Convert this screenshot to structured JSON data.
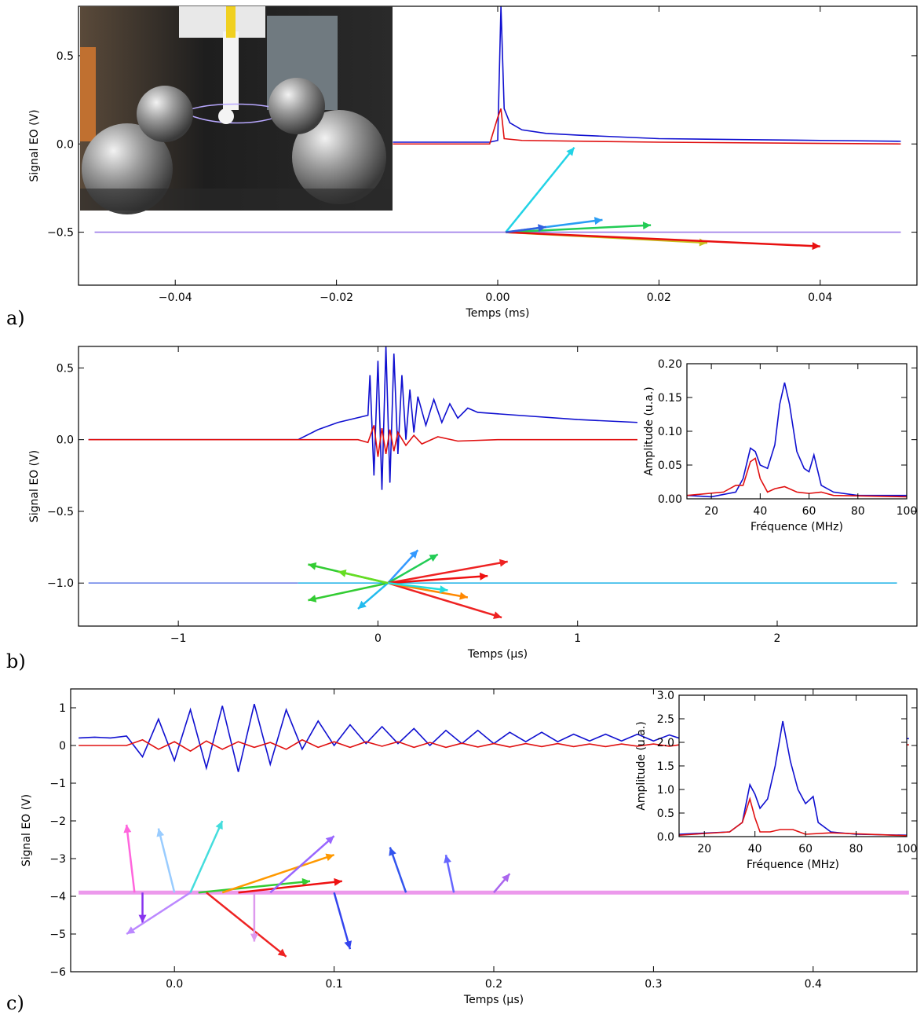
{
  "chart_data": [
    {
      "type": "line",
      "label": "a)",
      "xlabel": "Temps (ms)",
      "ylabel": "Signal EO (V)",
      "xlim": [
        -0.052,
        0.052
      ],
      "ylim": [
        -0.8,
        0.78
      ],
      "xticks": [
        {
          "value": -0.04,
          "label": "−0.04"
        },
        {
          "value": -0.02,
          "label": "−0.02"
        },
        {
          "value": 0,
          "label": "0.00"
        },
        0.02,
        0.04
      ],
      "yticks": [
        {
          "value": -0.5,
          "label": "−0.5"
        },
        {
          "value": 0,
          "label": "0.0"
        },
        0.5
      ],
      "series": [
        {
          "color": "#9b7be8",
          "x": [
            -0.05,
            0.05
          ],
          "values": [
            -0.5,
            -0.5
          ]
        },
        {
          "color": "#1010d0",
          "x": [
            -0.013,
            -0.001,
            0,
            0.0004,
            0.0008,
            0.0015,
            0.003,
            0.006,
            0.01,
            0.02,
            0.03,
            0.04,
            0.05
          ],
          "values": [
            0.01,
            0.01,
            0.02,
            0.78,
            0.2,
            0.12,
            0.08,
            0.06,
            0.05,
            0.03,
            0.025,
            0.02,
            0.015
          ]
        },
        {
          "color": "#e01010",
          "x": [
            -0.013,
            -0.001,
            0,
            0.0004,
            0.0008,
            0.003,
            0.02,
            0.05
          ],
          "values": [
            0,
            0,
            0.15,
            0.2,
            0.03,
            0.02,
            0.01,
            0
          ]
        }
      ],
      "arrows": [
        {
          "color": "#22d3e6",
          "x": [
            0.001,
            0.0095
          ],
          "y": [
            -0.5,
            -0.02
          ]
        },
        {
          "color": "#2a9df4",
          "x": [
            0.001,
            0.013
          ],
          "y": [
            -0.5,
            -0.43
          ]
        },
        {
          "color": "#22cc55",
          "x": [
            0.001,
            0.019
          ],
          "y": [
            -0.5,
            -0.46
          ]
        },
        {
          "color": "#c8c020",
          "x": [
            0.001,
            0.026
          ],
          "y": [
            -0.5,
            -0.56
          ]
        },
        {
          "color": "#e81010",
          "x": [
            0.001,
            0.04
          ],
          "y": [
            -0.5,
            -0.58
          ]
        },
        {
          "color": "#3060e0",
          "x": [
            0.001,
            0.006
          ],
          "y": [
            -0.5,
            -0.47
          ]
        }
      ]
    },
    {
      "type": "line",
      "label": "b)",
      "xlabel": "Temps (µs)",
      "ylabel": "Signal EO (V)",
      "xlim": [
        -1.5,
        2.7
      ],
      "ylim": [
        -1.3,
        0.65
      ],
      "xticks": [
        {
          "value": -1,
          "label": "−1"
        },
        0,
        1,
        2
      ],
      "yticks": [
        {
          "value": -1,
          "label": "−1.0"
        },
        {
          "value": -0.5,
          "label": "−0.5"
        },
        {
          "value": 0,
          "label": "0.0"
        },
        0.5
      ],
      "series": [
        {
          "color": "#6c84e8",
          "x": [
            -1.45,
            -0.4
          ],
          "values": [
            -1,
            -1
          ]
        },
        {
          "color": "#29b6e8",
          "x": [
            -0.4,
            2.6
          ],
          "values": [
            -1,
            -1
          ]
        },
        {
          "color": "#1010d0",
          "x": [
            -1.45,
            -0.4,
            -0.3,
            -0.2,
            -0.05,
            -0.04,
            -0.02,
            0,
            0.02,
            0.04,
            0.06,
            0.08,
            0.1,
            0.12,
            0.14,
            0.16,
            0.18,
            0.2,
            0.24,
            0.28,
            0.32,
            0.36,
            0.4,
            0.45,
            0.5,
            0.7,
            1.0,
            1.3
          ],
          "values": [
            0,
            0,
            0.07,
            0.12,
            0.17,
            0.45,
            -0.25,
            0.55,
            -0.35,
            0.65,
            -0.3,
            0.6,
            -0.1,
            0.45,
            0,
            0.35,
            0.05,
            0.3,
            0.1,
            0.28,
            0.12,
            0.25,
            0.15,
            0.22,
            0.19,
            0.17,
            0.14,
            0.12
          ]
        },
        {
          "color": "#e01010",
          "x": [
            -1.45,
            -0.1,
            -0.05,
            -0.02,
            0,
            0.02,
            0.04,
            0.06,
            0.08,
            0.1,
            0.14,
            0.18,
            0.22,
            0.3,
            0.4,
            0.6,
            1.0,
            1.3
          ],
          "values": [
            0,
            0,
            -0.02,
            0.1,
            -0.12,
            0.08,
            -0.1,
            0.07,
            -0.08,
            0.05,
            -0.04,
            0.03,
            -0.03,
            0.02,
            -0.01,
            0,
            0,
            0
          ]
        }
      ],
      "arrows": [
        {
          "color": "#33cc33",
          "x": [
            0.05,
            -0.35
          ],
          "y": [
            -1,
            -0.87
          ]
        },
        {
          "color": "#33cc33",
          "x": [
            0.05,
            -0.35
          ],
          "y": [
            -1,
            -1.12
          ]
        },
        {
          "color": "#3399ff",
          "x": [
            0.05,
            0.2
          ],
          "y": [
            -1,
            -0.77
          ]
        },
        {
          "color": "#22cc55",
          "x": [
            0.05,
            0.3
          ],
          "y": [
            -1,
            -0.8
          ]
        },
        {
          "color": "#ee2222",
          "x": [
            0.05,
            0.65
          ],
          "y": [
            -1,
            -0.85
          ]
        },
        {
          "color": "#ee2222",
          "x": [
            0.05,
            0.62
          ],
          "y": [
            -1,
            -1.24
          ]
        },
        {
          "color": "#ff8800",
          "x": [
            0.05,
            0.45
          ],
          "y": [
            -1,
            -1.1
          ]
        },
        {
          "color": "#22bbee",
          "x": [
            0.05,
            -0.1
          ],
          "y": [
            -1,
            -1.18
          ]
        },
        {
          "color": "#ee1111",
          "x": [
            0.05,
            0.55
          ],
          "y": [
            -1,
            -0.95
          ]
        },
        {
          "color": "#22dddd",
          "x": [
            0.05,
            0.35
          ],
          "y": [
            -1,
            -1.05
          ]
        },
        {
          "color": "#66dd22",
          "x": [
            0.05,
            -0.2
          ],
          "y": [
            -1,
            -0.92
          ]
        }
      ]
    },
    {
      "type": "line",
      "xlabel": "Fréquence (MHz)",
      "ylabel": "Amplitude (u.a.)",
      "xlim": [
        10,
        100
      ],
      "ylim": [
        0,
        0.2
      ],
      "xticks": [
        20,
        40,
        60,
        80,
        100
      ],
      "yticks": [
        {
          "value": 0,
          "label": "0.00"
        },
        0.05,
        {
          "value": 0.1,
          "label": "0.10"
        },
        0.15,
        {
          "value": 0.2,
          "label": "0.20"
        }
      ],
      "series": [
        {
          "color": "#1010d0",
          "x": [
            10,
            20,
            30,
            33,
            36,
            38,
            40,
            43,
            46,
            48,
            50,
            52,
            55,
            58,
            60,
            62,
            63,
            65,
            70,
            80,
            90,
            100
          ],
          "values": [
            0.005,
            0.003,
            0.01,
            0.03,
            0.075,
            0.07,
            0.05,
            0.045,
            0.08,
            0.14,
            0.172,
            0.14,
            0.07,
            0.045,
            0.04,
            0.065,
            0.05,
            0.02,
            0.01,
            0.005,
            0.005,
            0.005
          ]
        },
        {
          "color": "#e01010",
          "x": [
            10,
            25,
            30,
            33,
            36,
            38,
            40,
            43,
            46,
            50,
            55,
            60,
            65,
            70,
            100
          ],
          "values": [
            0.005,
            0.01,
            0.02,
            0.02,
            0.055,
            0.06,
            0.03,
            0.01,
            0.015,
            0.018,
            0.01,
            0.008,
            0.01,
            0.005,
            0.003
          ]
        }
      ]
    },
    {
      "type": "line",
      "label": "c)",
      "xlabel": "Temps (µs)",
      "ylabel": "Signal EO (V)",
      "xlim": [
        -0.065,
        0.465
      ],
      "ylim": [
        -6,
        1.5
      ],
      "xticks": [
        {
          "value": 0,
          "label": "0.0"
        },
        0.1,
        0.2,
        0.3,
        0.4
      ],
      "yticks": [
        {
          "value": -6,
          "label": "−6"
        },
        {
          "value": -5,
          "label": "−5"
        },
        {
          "value": -4,
          "label": "−4"
        },
        {
          "value": -3,
          "label": "−3"
        },
        {
          "value": -2,
          "label": "−2"
        },
        {
          "value": -1,
          "label": "−1"
        },
        0,
        1
      ],
      "x": [
        -0.06,
        -0.05,
        -0.04,
        -0.03,
        -0.02,
        -0.01,
        0,
        0.01,
        0.02,
        0.03,
        0.04,
        0.05,
        0.06,
        0.07,
        0.08,
        0.09,
        0.1,
        0.11,
        0.12,
        0.13,
        0.14,
        0.15,
        0.16,
        0.17,
        0.18,
        0.19,
        0.2,
        0.21,
        0.22,
        0.23,
        0.24,
        0.25,
        0.26,
        0.27,
        0.28,
        0.29,
        0.3,
        0.31,
        0.32,
        0.33,
        0.34,
        0.35,
        0.36,
        0.37,
        0.38,
        0.39,
        0.4,
        0.41,
        0.42,
        0.43,
        0.44,
        0.45,
        0.46
      ],
      "series": [
        {
          "color": "#1010d0",
          "values": [
            0.2,
            0.22,
            0.2,
            0.25,
            -0.3,
            0.7,
            -0.4,
            0.95,
            -0.6,
            1.05,
            -0.7,
            1.1,
            -0.5,
            0.95,
            -0.1,
            0.65,
            0.0,
            0.55,
            0.05,
            0.5,
            0.05,
            0.45,
            0.0,
            0.4,
            0.05,
            0.4,
            0.05,
            0.35,
            0.1,
            0.35,
            0.1,
            0.3,
            0.12,
            0.3,
            0.12,
            0.3,
            0.12,
            0.28,
            0.14,
            0.27,
            0.14,
            0.27,
            0.15,
            0.25,
            0.15,
            0.25,
            0.16,
            0.24,
            0.16,
            0.23,
            0.17,
            0.2,
            0.18
          ]
        },
        {
          "color": "#e01010",
          "values": [
            0,
            0,
            0,
            0,
            0.15,
            -0.1,
            0.1,
            -0.15,
            0.12,
            -0.1,
            0.1,
            -0.05,
            0.08,
            -0.1,
            0.15,
            -0.05,
            0.1,
            -0.05,
            0.1,
            -0.02,
            0.1,
            -0.05,
            0.08,
            -0.05,
            0.06,
            -0.04,
            0.05,
            -0.04,
            0.05,
            -0.03,
            0.05,
            -0.03,
            0.04,
            -0.03,
            0.04,
            -0.02,
            0.04,
            -0.02,
            0.04,
            -0.02,
            0.03,
            -0.02,
            0.03,
            -0.01,
            0.03,
            -0.01,
            0.03,
            -0.01,
            0.02,
            0,
            0.02,
            0,
            0.02
          ]
        }
      ],
      "bands": [
        {
          "color": "#e055e0",
          "x": [
            -0.06,
            0.46
          ],
          "values": [
            -3.9,
            -3.9
          ]
        }
      ],
      "arrows": [
        {
          "color": "#ff66dd",
          "x": [
            -0.025,
            -0.03
          ],
          "y": [
            -3.9,
            -2.1
          ]
        },
        {
          "color": "#8833ee",
          "x": [
            -0.02,
            -0.02
          ],
          "y": [
            -3.9,
            -4.7
          ]
        },
        {
          "color": "#99ccff",
          "x": [
            0,
            -0.01
          ],
          "y": [
            -3.9,
            -2.2
          ]
        },
        {
          "color": "#bb88ff",
          "x": [
            0.01,
            -0.03
          ],
          "y": [
            -3.9,
            -5
          ]
        },
        {
          "color": "#44dddd",
          "x": [
            0.01,
            0.03
          ],
          "y": [
            -3.9,
            -2
          ]
        },
        {
          "color": "#33cc33",
          "x": [
            0.015,
            0.085
          ],
          "y": [
            -3.9,
            -3.6
          ]
        },
        {
          "color": "#ee2222",
          "x": [
            0.02,
            0.07
          ],
          "y": [
            -3.9,
            -5.6
          ]
        },
        {
          "color": "#ff9900",
          "x": [
            0.03,
            0.1
          ],
          "y": [
            -3.9,
            -2.9
          ]
        },
        {
          "color": "#ee1111",
          "x": [
            0.04,
            0.105
          ],
          "y": [
            -3.9,
            -3.6
          ]
        },
        {
          "color": "#dd99ee",
          "x": [
            0.05,
            0.05
          ],
          "y": [
            -3.9,
            -5.2
          ]
        },
        {
          "color": "#9966ff",
          "x": [
            0.06,
            0.1
          ],
          "y": [
            -3.9,
            -2.4
          ]
        },
        {
          "color": "#3344ee",
          "x": [
            0.1,
            0.11
          ],
          "y": [
            -3.9,
            -5.4
          ]
        },
        {
          "color": "#3355ee",
          "x": [
            0.145,
            0.135
          ],
          "y": [
            -3.9,
            -2.7
          ]
        },
        {
          "color": "#6666ff",
          "x": [
            0.175,
            0.17
          ],
          "y": [
            -3.9,
            -2.9
          ]
        },
        {
          "color": "#aa66ee",
          "x": [
            0.2,
            0.21
          ],
          "y": [
            -3.9,
            -3.4
          ]
        }
      ]
    },
    {
      "type": "line",
      "xlabel": "Fréquence (MHz)",
      "ylabel": "Amplitude (u.a.)",
      "xlim": [
        10,
        100
      ],
      "ylim": [
        0,
        3
      ],
      "xticks": [
        20,
        40,
        60,
        80,
        100
      ],
      "yticks": [
        {
          "value": 0,
          "label": "0.0"
        },
        0.5,
        {
          "value": 1,
          "label": "1.0"
        },
        1.5,
        {
          "value": 2,
          "label": "2.0"
        },
        2.5,
        {
          "value": 3,
          "label": "3.0"
        }
      ],
      "series": [
        {
          "color": "#1010d0",
          "x": [
            10,
            30,
            35,
            38,
            40,
            42,
            45,
            48,
            51,
            54,
            57,
            60,
            63,
            65,
            70,
            80,
            100
          ],
          "values": [
            0.05,
            0.1,
            0.3,
            1.1,
            0.9,
            0.6,
            0.8,
            1.5,
            2.45,
            1.6,
            1.0,
            0.7,
            0.85,
            0.3,
            0.1,
            0.05,
            0.03
          ]
        },
        {
          "color": "#e01010",
          "x": [
            10,
            30,
            35,
            38,
            40,
            42,
            46,
            50,
            55,
            60,
            70,
            100
          ],
          "values": [
            0.03,
            0.1,
            0.3,
            0.8,
            0.4,
            0.1,
            0.1,
            0.15,
            0.15,
            0.05,
            0.08,
            0.02
          ]
        }
      ]
    }
  ]
}
